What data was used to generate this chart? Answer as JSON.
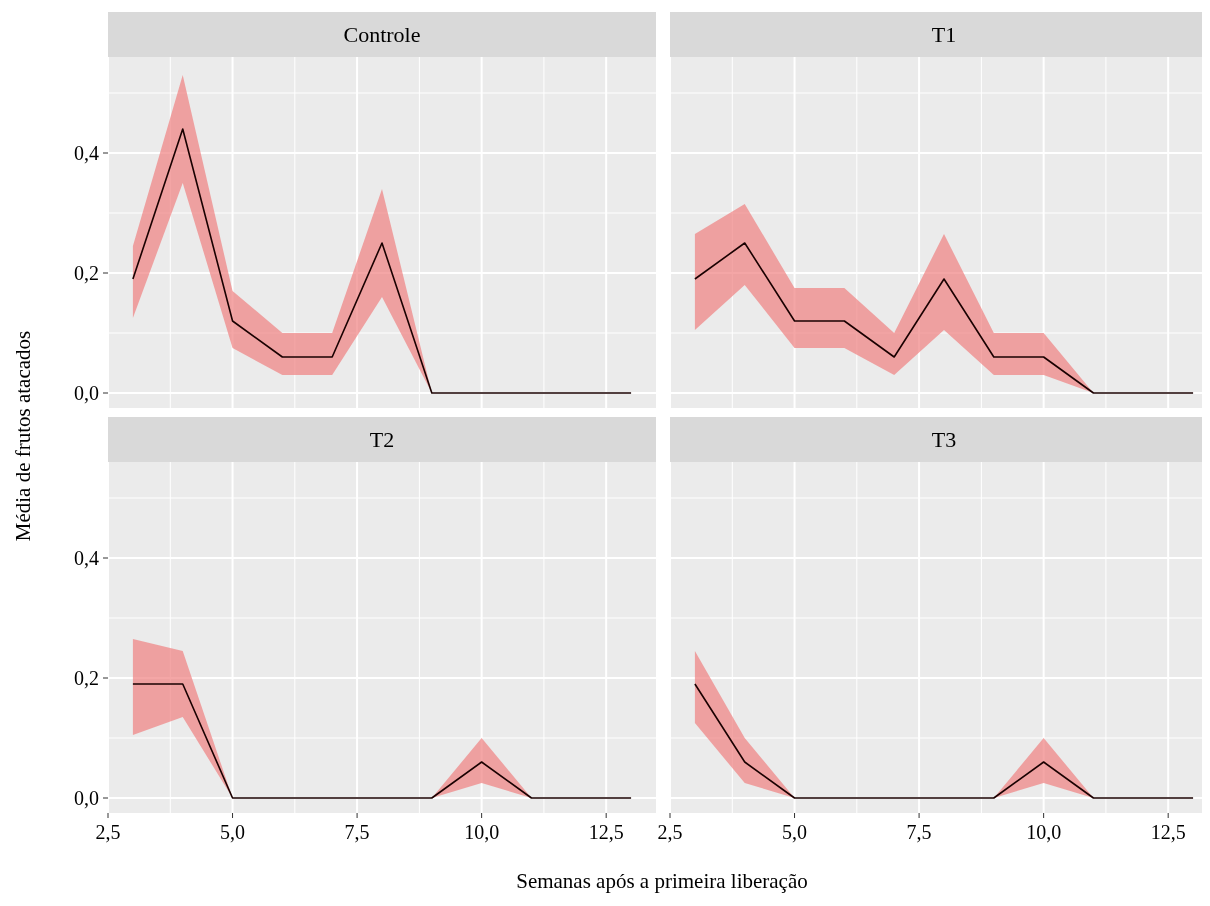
{
  "chart_data": [
    {
      "type": "line",
      "title": "Controle",
      "ylabel": "Média de frutos atacados",
      "x": [
        3,
        4,
        5,
        6,
        7,
        8,
        9,
        10,
        11,
        12,
        13
      ],
      "xlim": [
        2.5,
        13.5
      ],
      "ylim": [
        -0.025,
        0.56
      ],
      "xticks": [
        2.5,
        5,
        7.5,
        10,
        12.5
      ],
      "yticks": [
        {
          "value": 0,
          "label": "0,0"
        },
        {
          "value": 0.2,
          "label": "0,2"
        },
        {
          "value": 0.4,
          "label": "0,4"
        }
      ],
      "grid": true,
      "tick_labels": "y",
      "series": [
        {
          "color": "#1a0000",
          "values": [
            0.19,
            0.44,
            0.12,
            0.06,
            0.06,
            0.25,
            0,
            0,
            0,
            0,
            0
          ],
          "lower": [
            0.125,
            0.35,
            0.075,
            0.03,
            0.03,
            0.16,
            0,
            0,
            0,
            0,
            0
          ],
          "upper": [
            0.245,
            0.53,
            0.17,
            0.1,
            0.1,
            0.34,
            0,
            0,
            0,
            0,
            0
          ]
        }
      ]
    },
    {
      "type": "line",
      "title": "T1",
      "x": [
        3,
        4,
        5,
        6,
        7,
        8,
        9,
        10,
        11,
        12,
        13
      ],
      "xlim": [
        2.5,
        13.5
      ],
      "ylim": [
        -0.025,
        0.56
      ],
      "xticks": [
        2.5,
        5,
        7.5,
        10,
        12.5
      ],
      "yticks": [
        0,
        0.2,
        0.4
      ],
      "grid": true,
      "tick_labels": false,
      "series": [
        {
          "color": "#1a0000",
          "values": [
            0.19,
            0.25,
            0.12,
            0.12,
            0.06,
            0.19,
            0.06,
            0.06,
            0,
            0,
            0
          ],
          "lower": [
            0.105,
            0.18,
            0.075,
            0.075,
            0.03,
            0.105,
            0.03,
            0.03,
            0,
            0,
            0
          ],
          "upper": [
            0.265,
            0.315,
            0.175,
            0.175,
            0.1,
            0.265,
            0.1,
            0.1,
            0,
            0,
            0
          ]
        }
      ]
    },
    {
      "type": "line",
      "title": "T2",
      "xlabel": "Semanas após a primeira liberação",
      "x": [
        3,
        4,
        5,
        6,
        7,
        8,
        9,
        10,
        11,
        12,
        13
      ],
      "xlim": [
        2.5,
        13.5
      ],
      "ylim": [
        -0.025,
        0.56
      ],
      "xticks": [
        {
          "value": 2.5,
          "label": "2,5"
        },
        {
          "value": 5,
          "label": "5,0"
        },
        {
          "value": 7.5,
          "label": "7,5"
        },
        {
          "value": 10,
          "label": "10,0"
        },
        {
          "value": 12.5,
          "label": "12,5"
        }
      ],
      "yticks": [
        {
          "value": 0,
          "label": "0,0"
        },
        {
          "value": 0.2,
          "label": "0,2"
        },
        {
          "value": 0.4,
          "label": "0,4"
        }
      ],
      "grid": true,
      "series": [
        {
          "color": "#1a0000",
          "values": [
            0.19,
            0.19,
            0,
            0,
            0,
            0,
            0,
            0.06,
            0,
            0,
            0
          ],
          "lower": [
            0.105,
            0.135,
            0,
            0,
            0,
            0,
            0,
            0.025,
            0,
            0,
            0
          ],
          "upper": [
            0.265,
            0.245,
            0,
            0,
            0,
            0,
            0,
            0.1,
            0,
            0,
            0
          ]
        }
      ]
    },
    {
      "type": "line",
      "title": "T3",
      "x": [
        3,
        4,
        5,
        6,
        7,
        8,
        9,
        10,
        11,
        12,
        13
      ],
      "xlim": [
        2.5,
        13.5
      ],
      "ylim": [
        -0.025,
        0.56
      ],
      "xticks": [
        {
          "value": 2.5,
          "label": "2,5"
        },
        {
          "value": 5,
          "label": "5,0"
        },
        {
          "value": 7.5,
          "label": "7,5"
        },
        {
          "value": 10,
          "label": "10,0"
        },
        {
          "value": 12.5,
          "label": "12,5"
        }
      ],
      "yticks": [
        0,
        0.2,
        0.4
      ],
      "grid": true,
      "tick_labels": "x",
      "series": [
        {
          "color": "#1a0000",
          "values": [
            0.19,
            0.06,
            0,
            0,
            0,
            0,
            0,
            0.06,
            0,
            0,
            0
          ],
          "lower": [
            0.125,
            0.025,
            0,
            0,
            0,
            0,
            0,
            0.025,
            0,
            0,
            0
          ],
          "upper": [
            0.245,
            0.1,
            0,
            0,
            0,
            0,
            0,
            0.1,
            0,
            0,
            0
          ]
        }
      ]
    }
  ]
}
